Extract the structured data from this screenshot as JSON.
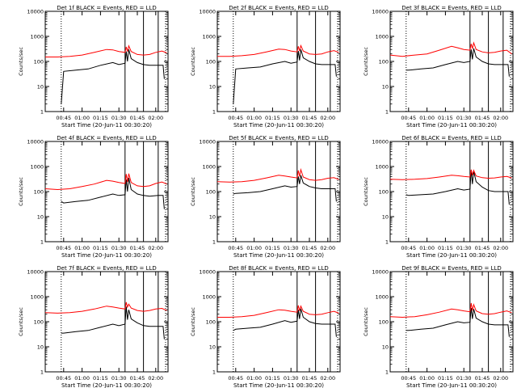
{
  "figure": {
    "xlabel": "Start Time (20-Jun-11 00:30:20)",
    "ylabel": "Counts/sec",
    "x_ticks": [
      "00:45",
      "01:00",
      "01:15",
      "01:30",
      "01:45",
      "02:00"
    ],
    "y_ticks": [
      "1",
      "10",
      "100",
      "1000",
      "10000"
    ],
    "colors": {
      "black": "#000000",
      "red": "#ff0000",
      "axes": "#000000"
    }
  },
  "chart_data": [
    {
      "type": "line",
      "title": "Det 1f BLACK = Events, RED = LLD",
      "x_units": "minutes after 00:30:20",
      "xlim": [
        0,
        100
      ],
      "ylim": [
        1,
        10000
      ],
      "y_scale": "log",
      "dotted_markers": [
        13,
        98
      ],
      "solid_markers": [
        65,
        80,
        92
      ],
      "series": [
        {
          "color": "#000000",
          "x": [
            13,
            15,
            25,
            35,
            45,
            55,
            60,
            65,
            66,
            67,
            68,
            70,
            75,
            80,
            85,
            92,
            96,
            97
          ],
          "y": [
            2,
            40,
            45,
            50,
            70,
            90,
            75,
            85,
            250,
            100,
            300,
            130,
            90,
            75,
            70,
            70,
            70,
            20
          ]
        },
        {
          "color": "#ff0000",
          "x": [
            0,
            10,
            20,
            30,
            40,
            50,
            55,
            60,
            65,
            66,
            67,
            68,
            70,
            75,
            80,
            85,
            90,
            95,
            99
          ],
          "y": [
            150,
            150,
            160,
            180,
            230,
            300,
            290,
            250,
            230,
            380,
            250,
            420,
            250,
            190,
            180,
            190,
            230,
            260,
            220
          ]
        }
      ]
    },
    {
      "type": "line",
      "title": "Det 2f BLACK = Events, RED = LLD",
      "x_units": "minutes after 00:30:20",
      "xlim": [
        0,
        100
      ],
      "ylim": [
        1,
        10000
      ],
      "y_scale": "log",
      "dotted_markers": [
        13,
        98
      ],
      "solid_markers": [
        65,
        80,
        92
      ],
      "series": [
        {
          "color": "#000000",
          "x": [
            13,
            15,
            25,
            35,
            45,
            55,
            60,
            65,
            66,
            67,
            68,
            70,
            75,
            80,
            85,
            92,
            96,
            97
          ],
          "y": [
            2,
            50,
            55,
            60,
            80,
            100,
            85,
            95,
            260,
            110,
            300,
            140,
            100,
            80,
            75,
            75,
            75,
            25
          ]
        },
        {
          "color": "#ff0000",
          "x": [
            0,
            10,
            20,
            30,
            40,
            50,
            55,
            60,
            65,
            66,
            67,
            68,
            70,
            75,
            80,
            85,
            90,
            95,
            99
          ],
          "y": [
            160,
            160,
            170,
            190,
            240,
            310,
            300,
            260,
            240,
            400,
            260,
            430,
            260,
            200,
            190,
            200,
            240,
            270,
            230
          ]
        }
      ]
    },
    {
      "type": "line",
      "title": "Det 3f BLACK = Events, RED = LLD",
      "x_units": "minutes after 00:30:20",
      "xlim": [
        0,
        100
      ],
      "ylim": [
        1,
        10000
      ],
      "y_scale": "log",
      "dotted_markers": [
        13,
        98
      ],
      "solid_markers": [
        65,
        80,
        92
      ],
      "series": [
        {
          "color": "#000000",
          "x": [
            13,
            15,
            25,
            35,
            45,
            55,
            60,
            65,
            66,
            67,
            68,
            70,
            75,
            80,
            85,
            92,
            96,
            97
          ],
          "y": [
            45,
            45,
            50,
            55,
            75,
            100,
            90,
            100,
            300,
            120,
            330,
            150,
            100,
            80,
            75,
            75,
            75,
            25
          ]
        },
        {
          "color": "#ff0000",
          "x": [
            0,
            10,
            20,
            30,
            40,
            50,
            55,
            60,
            65,
            66,
            67,
            68,
            70,
            75,
            80,
            85,
            90,
            95,
            99
          ],
          "y": [
            180,
            160,
            180,
            200,
            280,
            400,
            350,
            300,
            280,
            500,
            320,
            550,
            300,
            240,
            220,
            230,
            260,
            280,
            200
          ]
        }
      ]
    },
    {
      "type": "line",
      "title": "Det 4f BLACK = Events, RED = LLD",
      "x_units": "minutes after 00:30:20",
      "xlim": [
        0,
        100
      ],
      "ylim": [
        1,
        10000
      ],
      "y_scale": "log",
      "dotted_markers": [
        13,
        98
      ],
      "solid_markers": [
        65,
        80,
        92
      ],
      "series": [
        {
          "color": "#000000",
          "x": [
            13,
            15,
            25,
            35,
            45,
            55,
            60,
            65,
            66,
            67,
            68,
            70,
            75,
            80,
            85,
            92,
            96,
            97
          ],
          "y": [
            40,
            35,
            40,
            45,
            60,
            80,
            70,
            75,
            300,
            100,
            350,
            120,
            80,
            70,
            65,
            70,
            70,
            20
          ]
        },
        {
          "color": "#ff0000",
          "x": [
            0,
            10,
            20,
            30,
            40,
            50,
            55,
            60,
            65,
            66,
            67,
            68,
            70,
            75,
            80,
            85,
            90,
            95,
            99
          ],
          "y": [
            130,
            120,
            130,
            160,
            200,
            280,
            260,
            230,
            210,
            500,
            240,
            520,
            230,
            170,
            160,
            170,
            210,
            240,
            200
          ]
        }
      ]
    },
    {
      "type": "line",
      "title": "Det 5f BLACK = Events, RED = LLD",
      "x_units": "minutes after 00:30:20",
      "xlim": [
        0,
        100
      ],
      "ylim": [
        1,
        10000
      ],
      "y_scale": "log",
      "dotted_markers": [
        13,
        98
      ],
      "solid_markers": [
        65,
        80,
        92
      ],
      "series": [
        {
          "color": "#000000",
          "x": [
            13,
            15,
            25,
            35,
            45,
            55,
            60,
            65,
            66,
            67,
            68,
            70,
            75,
            80,
            85,
            92,
            96,
            97
          ],
          "y": [
            80,
            85,
            90,
            100,
            130,
            170,
            150,
            160,
            400,
            200,
            450,
            220,
            160,
            140,
            130,
            130,
            130,
            40
          ]
        },
        {
          "color": "#ff0000",
          "x": [
            0,
            10,
            20,
            30,
            40,
            50,
            55,
            60,
            65,
            66,
            67,
            68,
            70,
            75,
            80,
            85,
            90,
            95,
            99
          ],
          "y": [
            250,
            240,
            250,
            280,
            350,
            450,
            420,
            380,
            350,
            700,
            400,
            750,
            380,
            300,
            280,
            300,
            340,
            360,
            300
          ]
        }
      ]
    },
    {
      "type": "line",
      "title": "Det 6f BLACK = Events, RED = LLD",
      "x_units": "minutes after 00:30:20",
      "xlim": [
        0,
        100
      ],
      "ylim": [
        1,
        10000
      ],
      "y_scale": "log",
      "dotted_markers": [
        13,
        98
      ],
      "solid_markers": [
        65,
        80,
        92
      ],
      "series": [
        {
          "color": "#000000",
          "x": [
            13,
            15,
            25,
            35,
            45,
            55,
            60,
            65,
            66,
            67,
            68,
            70,
            75,
            80,
            85,
            92,
            96,
            97
          ],
          "y": [
            75,
            70,
            75,
            80,
            100,
            130,
            115,
            125,
            700,
            200,
            650,
            250,
            150,
            110,
            100,
            100,
            100,
            30
          ]
        },
        {
          "color": "#ff0000",
          "x": [
            0,
            10,
            20,
            30,
            40,
            50,
            55,
            60,
            65,
            66,
            67,
            68,
            70,
            75,
            80,
            85,
            90,
            95,
            99
          ],
          "y": [
            310,
            300,
            310,
            330,
            380,
            450,
            430,
            400,
            380,
            750,
            450,
            700,
            420,
            360,
            340,
            350,
            380,
            400,
            350
          ]
        }
      ]
    },
    {
      "type": "line",
      "title": "Det 7f BLACK = Events, RED = LLD",
      "x_units": "minutes after 00:30:20",
      "xlim": [
        0,
        100
      ],
      "ylim": [
        1,
        10000
      ],
      "y_scale": "log",
      "dotted_markers": [
        13,
        98
      ],
      "solid_markers": [
        65,
        80,
        92
      ],
      "series": [
        {
          "color": "#000000",
          "x": [
            13,
            15,
            25,
            35,
            45,
            55,
            60,
            65,
            66,
            67,
            68,
            70,
            75,
            80,
            85,
            92,
            96,
            97
          ],
          "y": [
            35,
            35,
            40,
            45,
            60,
            80,
            70,
            80,
            400,
            120,
            300,
            130,
            90,
            70,
            65,
            65,
            65,
            20
          ]
        },
        {
          "color": "#ff0000",
          "x": [
            0,
            10,
            20,
            30,
            40,
            50,
            55,
            60,
            65,
            66,
            67,
            68,
            70,
            75,
            80,
            85,
            90,
            95,
            99
          ],
          "y": [
            230,
            220,
            230,
            260,
            320,
            420,
            390,
            350,
            320,
            600,
            380,
            500,
            350,
            280,
            260,
            280,
            320,
            340,
            280
          ]
        }
      ]
    },
    {
      "type": "line",
      "title": "Det 8f BLACK = Events, RED = LLD",
      "x_units": "minutes after 00:30:20",
      "xlim": [
        0,
        100
      ],
      "ylim": [
        1,
        10000
      ],
      "y_scale": "log",
      "dotted_markers": [
        13,
        98
      ],
      "solid_markers": [
        65,
        80,
        92
      ],
      "series": [
        {
          "color": "#000000",
          "x": [
            13,
            15,
            25,
            35,
            45,
            55,
            60,
            65,
            66,
            67,
            68,
            70,
            75,
            80,
            85,
            92,
            96,
            97
          ],
          "y": [
            45,
            50,
            55,
            60,
            80,
            110,
            95,
            105,
            300,
            130,
            330,
            150,
            100,
            85,
            80,
            80,
            80,
            25
          ]
        },
        {
          "color": "#ff0000",
          "x": [
            0,
            10,
            20,
            30,
            40,
            50,
            55,
            60,
            65,
            66,
            67,
            68,
            70,
            75,
            80,
            85,
            90,
            95,
            99
          ],
          "y": [
            150,
            150,
            160,
            180,
            230,
            300,
            290,
            260,
            240,
            450,
            270,
            420,
            260,
            200,
            190,
            200,
            230,
            260,
            220
          ]
        }
      ]
    },
    {
      "type": "line",
      "title": "Det 9f BLACK = Events, RED = LLD",
      "x_units": "minutes after 00:30:20",
      "xlim": [
        0,
        100
      ],
      "ylim": [
        1,
        10000
      ],
      "y_scale": "log",
      "dotted_markers": [
        13,
        98
      ],
      "solid_markers": [
        65,
        80,
        92
      ],
      "series": [
        {
          "color": "#000000",
          "x": [
            13,
            15,
            25,
            35,
            45,
            55,
            60,
            65,
            66,
            67,
            68,
            70,
            75,
            80,
            85,
            92,
            96,
            97
          ],
          "y": [
            45,
            45,
            50,
            55,
            75,
            100,
            90,
            95,
            350,
            130,
            320,
            140,
            100,
            80,
            75,
            75,
            75,
            25
          ]
        },
        {
          "color": "#ff0000",
          "x": [
            0,
            10,
            20,
            30,
            40,
            50,
            55,
            60,
            65,
            66,
            67,
            68,
            70,
            75,
            80,
            85,
            90,
            95,
            99
          ],
          "y": [
            160,
            150,
            160,
            190,
            240,
            320,
            300,
            270,
            250,
            550,
            280,
            480,
            270,
            210,
            200,
            210,
            240,
            270,
            230
          ]
        }
      ]
    }
  ]
}
